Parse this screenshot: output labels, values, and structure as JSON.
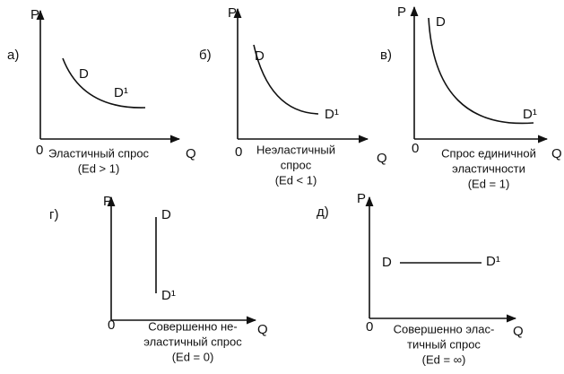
{
  "panels": [
    {
      "label": "а)",
      "axis_y": "P",
      "axis_x": "Q",
      "origin": "0",
      "curve_start": "D",
      "curve_end": "D¹",
      "caption": [
        "Эластичный спрос",
        "(Ed > 1)"
      ]
    },
    {
      "label": "б)",
      "axis_y": "P",
      "axis_x": "Q",
      "origin": "0",
      "curve_start": "D",
      "curve_end": "D¹",
      "caption": [
        "Неэластичный",
        "спрос",
        "(Ed < 1)"
      ]
    },
    {
      "label": "в)",
      "axis_y": "P",
      "axis_x": "Q",
      "origin": "0",
      "curve_start": "D",
      "curve_end": "D¹",
      "caption": [
        "Спрос единичной",
        "эластичности",
        "(Ed = 1)"
      ]
    },
    {
      "label": "г)",
      "axis_y": "P",
      "axis_x": "Q",
      "origin": "0",
      "curve_start": "D",
      "curve_end": "D¹",
      "caption": [
        "Совершенно не-",
        "эластичный спрос",
        "(Ed = 0)"
      ]
    },
    {
      "label": "д)",
      "axis_y": "P",
      "axis_x": "Q",
      "origin": "0",
      "curve_start": "D",
      "curve_end": "D¹",
      "caption": [
        "Совершенно элас-",
        "тичный спрос",
        "(Ed = ∞)"
      ]
    }
  ]
}
